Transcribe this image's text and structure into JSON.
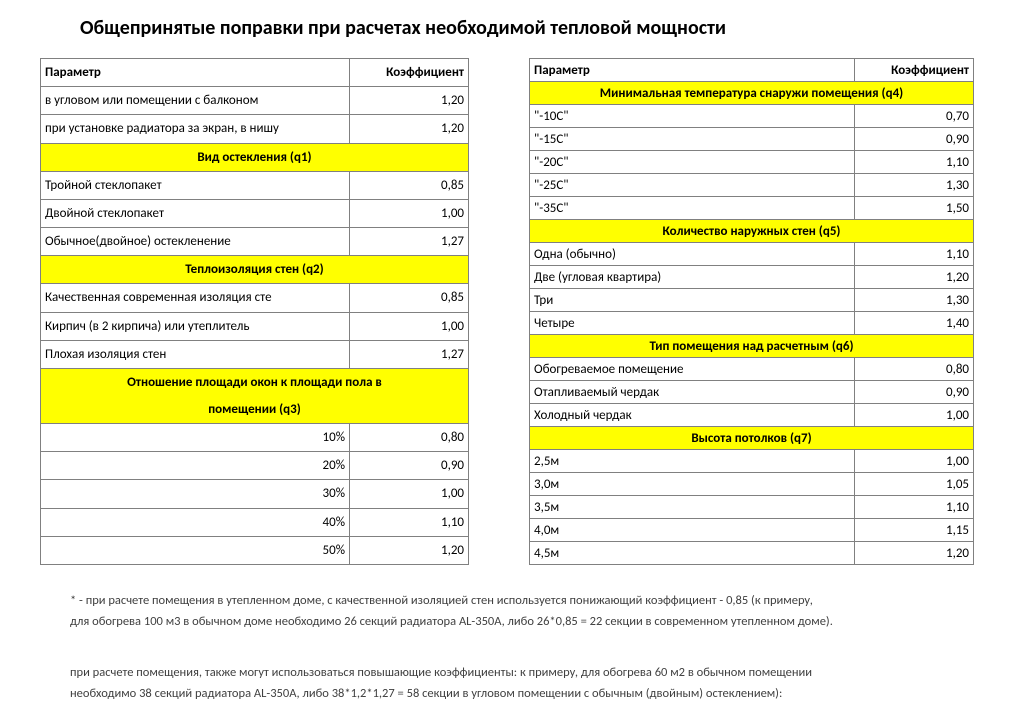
{
  "title": "Общепринятые поправки при расчетах необходимой тепловой мощности",
  "headers": {
    "param": "Параметр",
    "coef": "Коэффициент"
  },
  "left": [
    {
      "t": "row",
      "p": "в угловом или помещении с балконом",
      "c": "1,20"
    },
    {
      "t": "row",
      "p": "при установке радиатора за экран, в нишу",
      "c": "1,20"
    },
    {
      "t": "header",
      "p": "Вид остекления (q1)"
    },
    {
      "t": "row",
      "p": "Тройной стеклопакет",
      "c": "0,85"
    },
    {
      "t": "row",
      "p": "Двойной стеклопакет",
      "c": "1,00"
    },
    {
      "t": "row",
      "p": "Обычное(двойное) остекленение",
      "c": "1,27"
    },
    {
      "t": "header",
      "p": "Теплоизоляция стен (q2)"
    },
    {
      "t": "row",
      "p": "Качественная современная изоляция сте",
      "c": "0,85"
    },
    {
      "t": "row",
      "p": "Кирпич (в 2 кирпича) или утеплитель",
      "c": "1,00"
    },
    {
      "t": "row",
      "p": "Плохая изоляция стен",
      "c": "1,27"
    },
    {
      "t": "header2",
      "p1": "Отношение площади окон к площади пола в",
      "p2": "помещении (q3)"
    },
    {
      "t": "rowr",
      "p": "10%",
      "c": "0,80"
    },
    {
      "t": "rowr",
      "p": "20%",
      "c": "0,90"
    },
    {
      "t": "rowr",
      "p": "30%",
      "c": "1,00"
    },
    {
      "t": "rowr",
      "p": "40%",
      "c": "1,10"
    },
    {
      "t": "rowr",
      "p": "50%",
      "c": "1,20"
    }
  ],
  "right": [
    {
      "t": "header",
      "p": "Минимальная температура  снаружи помещения (q4)"
    },
    {
      "t": "row",
      "p": "\"-10C\"",
      "c": "0,70"
    },
    {
      "t": "row",
      "p": "\"-15C\"",
      "c": "0,90"
    },
    {
      "t": "row",
      "p": "\"-20C\"",
      "c": "1,10"
    },
    {
      "t": "row",
      "p": "\"-25C\"",
      "c": "1,30"
    },
    {
      "t": "row",
      "p": "\"-35C\"",
      "c": "1,50"
    },
    {
      "t": "header",
      "p": "Количество наружных стен (q5)"
    },
    {
      "t": "row",
      "p": "Одна (обычно)",
      "c": "1,10"
    },
    {
      "t": "row",
      "p": "Две (угловая квартира)",
      "c": "1,20"
    },
    {
      "t": "row",
      "p": "Три",
      "c": "1,30"
    },
    {
      "t": "row",
      "p": "Четыре",
      "c": "1,40"
    },
    {
      "t": "header",
      "p": "Тип помещения над расчетным (q6)"
    },
    {
      "t": "row",
      "p": "Обогреваемое помещение",
      "c": "0,80"
    },
    {
      "t": "row",
      "p": "Отапливаемый чердак",
      "c": "0,90"
    },
    {
      "t": "row",
      "p": "Холодный чердак",
      "c": "1,00"
    },
    {
      "t": "header",
      "p": "Высота потолков (q7)"
    },
    {
      "t": "row",
      "p": "2,5м",
      "c": "1,00"
    },
    {
      "t": "row",
      "p": "3,0м",
      "c": "1,05"
    },
    {
      "t": "row",
      "p": "3,5м",
      "c": "1,10"
    },
    {
      "t": "row",
      "p": "4,0м",
      "c": "1,15"
    },
    {
      "t": "row",
      "p": "4,5м",
      "c": "1,20"
    }
  ],
  "foot1a": "* - при расчете помещения в утепленном доме, с качественной изоляцией стен используется понижающий коэффициент - 0,85 (к примеру,",
  "foot1b": "для обогрева 100 м3 в обычном доме необходимо 26 секций радиатора AL-350A, либо 26*0,85 = 22 секции в современном утепленном доме).",
  "foot2a": "при расчете помещения, также могут использоваться повышающие коэффициенты: к примеру, для обогрева 60 м2 в обычном помещении",
  "foot2b": "необходимо 38 секций радиатора AL-350A, либо 38*1,2*1,27 = 58 секции в угловом помещении с обычным (двойным) остеклением):"
}
